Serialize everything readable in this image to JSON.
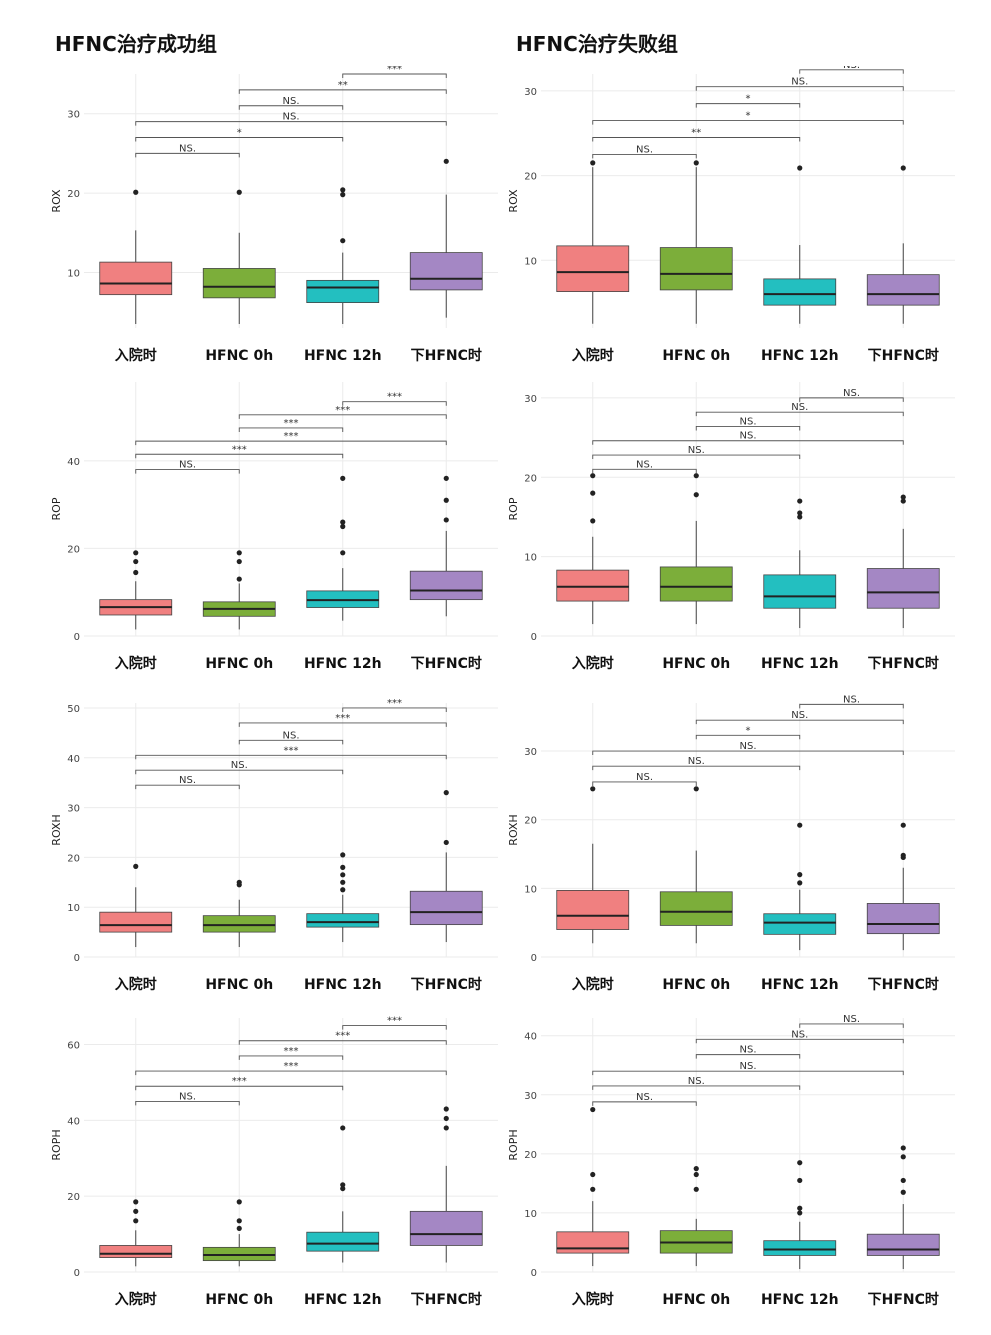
{
  "titles": {
    "left": "HFNC治疗成功组",
    "right": "HFNC治疗失败组"
  },
  "colors": {
    "g1": "#F08080",
    "g2": "#7CAE3A",
    "g3": "#23BFC0",
    "g4": "#A487C4",
    "grid": "#EBEBEB",
    "axis": "#444444",
    "bracket": "#555555"
  },
  "chart_data": [
    {
      "type": "box",
      "ylabel": "ROX",
      "ylim": [
        3,
        35
      ],
      "yticks": [
        10,
        20,
        30
      ],
      "categories": [
        "入院时",
        "HFNC 0h",
        "HFNC 12h",
        "下HFNC时"
      ],
      "boxes": [
        {
          "min": 3.5,
          "q1": 7.2,
          "median": 8.6,
          "q3": 11.3,
          "max": 15.3,
          "outliers": [
            20.1
          ]
        },
        {
          "min": 3.5,
          "q1": 6.8,
          "median": 8.2,
          "q3": 10.5,
          "max": 15.0,
          "outliers": [
            20.1
          ]
        },
        {
          "min": 3.5,
          "q1": 6.2,
          "median": 8.1,
          "q3": 9.0,
          "max": 12.5,
          "outliers": [
            14.0,
            19.8,
            20.4
          ]
        },
        {
          "min": 4.3,
          "q1": 7.8,
          "median": 9.2,
          "q3": 12.5,
          "max": 19.8,
          "outliers": [
            24.0
          ]
        }
      ],
      "comparisons": [
        {
          "a": 0,
          "b": 1,
          "y": 25.0,
          "label": "NS."
        },
        {
          "a": 0,
          "b": 2,
          "y": 27.0,
          "label": "*"
        },
        {
          "a": 0,
          "b": 3,
          "y": 29.0,
          "label": "NS."
        },
        {
          "a": 1,
          "b": 2,
          "y": 31.0,
          "label": "NS."
        },
        {
          "a": 1,
          "b": 3,
          "y": 33.0,
          "label": "**"
        },
        {
          "a": 2,
          "b": 3,
          "y": 35.0,
          "label": "***"
        }
      ]
    },
    {
      "type": "box",
      "ylabel": "ROX",
      "ylim": [
        2,
        32
      ],
      "yticks": [
        10,
        20,
        30
      ],
      "categories": [
        "入院时",
        "HFNC 0h",
        "HFNC 12h",
        "下HFNC时"
      ],
      "boxes": [
        {
          "min": 2.5,
          "q1": 6.3,
          "median": 8.6,
          "q3": 11.7,
          "max": 21.0,
          "outliers": [
            21.5
          ]
        },
        {
          "min": 2.5,
          "q1": 6.5,
          "median": 8.4,
          "q3": 11.5,
          "max": 21.0,
          "outliers": [
            21.5
          ]
        },
        {
          "min": 2.5,
          "q1": 4.7,
          "median": 6.0,
          "q3": 7.8,
          "max": 11.8,
          "outliers": [
            20.9
          ]
        },
        {
          "min": 2.5,
          "q1": 4.7,
          "median": 6.0,
          "q3": 8.3,
          "max": 12.0,
          "outliers": [
            20.9
          ]
        }
      ],
      "comparisons": [
        {
          "a": 0,
          "b": 1,
          "y": 22.5,
          "label": "NS."
        },
        {
          "a": 0,
          "b": 2,
          "y": 24.5,
          "label": "**"
        },
        {
          "a": 0,
          "b": 3,
          "y": 26.5,
          "label": "*"
        },
        {
          "a": 1,
          "b": 2,
          "y": 28.5,
          "label": "*"
        },
        {
          "a": 1,
          "b": 3,
          "y": 30.5,
          "label": "NS."
        },
        {
          "a": 2,
          "b": 3,
          "y": 32.5,
          "label": "NS."
        }
      ]
    },
    {
      "type": "box",
      "ylabel": "ROP",
      "ylim": [
        0,
        58
      ],
      "yticks": [
        0,
        20,
        40
      ],
      "categories": [
        "入院时",
        "HFNC 0h",
        "HFNC 12h",
        "下HFNC时"
      ],
      "boxes": [
        {
          "min": 1.5,
          "q1": 4.8,
          "median": 6.6,
          "q3": 8.3,
          "max": 12.5,
          "outliers": [
            14.5,
            17.0,
            19.0
          ]
        },
        {
          "min": 1.5,
          "q1": 4.5,
          "median": 6.2,
          "q3": 7.8,
          "max": 12.0,
          "outliers": [
            13.0,
            17.0,
            19.0
          ]
        },
        {
          "min": 3.5,
          "q1": 6.5,
          "median": 8.2,
          "q3": 10.3,
          "max": 15.5,
          "outliers": [
            19.0,
            25.0,
            26.0,
            36.0
          ]
        },
        {
          "min": 4.5,
          "q1": 8.3,
          "median": 10.4,
          "q3": 14.8,
          "max": 24.0,
          "outliers": [
            26.5,
            31.0,
            36.0
          ]
        }
      ],
      "comparisons": [
        {
          "a": 0,
          "b": 1,
          "y": 38.0,
          "label": "NS."
        },
        {
          "a": 0,
          "b": 2,
          "y": 41.5,
          "label": "***"
        },
        {
          "a": 0,
          "b": 3,
          "y": 44.5,
          "label": "***"
        },
        {
          "a": 1,
          "b": 2,
          "y": 47.5,
          "label": "***"
        },
        {
          "a": 1,
          "b": 3,
          "y": 50.5,
          "label": "***"
        },
        {
          "a": 2,
          "b": 3,
          "y": 53.5,
          "label": "***"
        }
      ]
    },
    {
      "type": "box",
      "ylabel": "ROP",
      "ylim": [
        0,
        32
      ],
      "yticks": [
        0,
        10,
        20,
        30
      ],
      "categories": [
        "入院时",
        "HFNC 0h",
        "HFNC 12h",
        "下HFNC时"
      ],
      "boxes": [
        {
          "min": 1.5,
          "q1": 4.4,
          "median": 6.2,
          "q3": 8.3,
          "max": 12.5,
          "outliers": [
            14.5,
            18.0,
            20.2
          ]
        },
        {
          "min": 1.5,
          "q1": 4.4,
          "median": 6.2,
          "q3": 8.7,
          "max": 14.5,
          "outliers": [
            17.8,
            20.2
          ]
        },
        {
          "min": 1.0,
          "q1": 3.5,
          "median": 5.0,
          "q3": 7.7,
          "max": 10.8,
          "outliers": [
            15.0,
            15.5,
            17.0
          ]
        },
        {
          "min": 1.0,
          "q1": 3.5,
          "median": 5.5,
          "q3": 8.5,
          "max": 13.5,
          "outliers": [
            17.0,
            17.5
          ]
        }
      ],
      "comparisons": [
        {
          "a": 0,
          "b": 1,
          "y": 21.0,
          "label": "NS."
        },
        {
          "a": 0,
          "b": 2,
          "y": 22.8,
          "label": "NS."
        },
        {
          "a": 0,
          "b": 3,
          "y": 24.6,
          "label": "NS."
        },
        {
          "a": 1,
          "b": 2,
          "y": 26.4,
          "label": "NS."
        },
        {
          "a": 1,
          "b": 3,
          "y": 28.2,
          "label": "NS."
        },
        {
          "a": 2,
          "b": 3,
          "y": 30.0,
          "label": "NS."
        }
      ]
    },
    {
      "type": "box",
      "ylabel": "ROXH",
      "ylim": [
        0,
        51
      ],
      "yticks": [
        0,
        10,
        20,
        30,
        40,
        50
      ],
      "categories": [
        "入院时",
        "HFNC 0h",
        "HFNC 12h",
        "下HFNC时"
      ],
      "boxes": [
        {
          "min": 2.0,
          "q1": 5.0,
          "median": 6.4,
          "q3": 9.0,
          "max": 14.0,
          "outliers": [
            18.2
          ]
        },
        {
          "min": 2.0,
          "q1": 5.0,
          "median": 6.4,
          "q3": 8.3,
          "max": 11.5,
          "outliers": [
            14.5,
            15.0
          ]
        },
        {
          "min": 3.0,
          "q1": 6.0,
          "median": 7.0,
          "q3": 8.7,
          "max": 12.5,
          "outliers": [
            13.5,
            15.0,
            16.5,
            18.0,
            20.5
          ]
        },
        {
          "min": 3.0,
          "q1": 6.5,
          "median": 9.0,
          "q3": 13.2,
          "max": 21.0,
          "outliers": [
            23.0,
            33.0
          ]
        }
      ],
      "comparisons": [
        {
          "a": 0,
          "b": 1,
          "y": 34.5,
          "label": "NS."
        },
        {
          "a": 0,
          "b": 2,
          "y": 37.5,
          "label": "NS."
        },
        {
          "a": 0,
          "b": 3,
          "y": 40.5,
          "label": "***"
        },
        {
          "a": 1,
          "b": 2,
          "y": 43.5,
          "label": "NS."
        },
        {
          "a": 1,
          "b": 3,
          "y": 47.0,
          "label": "***"
        },
        {
          "a": 2,
          "b": 3,
          "y": 50.0,
          "label": "***"
        }
      ]
    },
    {
      "type": "box",
      "ylabel": "ROXH",
      "ylim": [
        0,
        37
      ],
      "yticks": [
        0,
        10,
        20,
        30
      ],
      "categories": [
        "入院时",
        "HFNC 0h",
        "HFNC 12h",
        "下HFNC时"
      ],
      "boxes": [
        {
          "min": 2.0,
          "q1": 4.0,
          "median": 6.0,
          "q3": 9.7,
          "max": 16.5,
          "outliers": [
            24.5
          ]
        },
        {
          "min": 2.0,
          "q1": 4.6,
          "median": 6.6,
          "q3": 9.5,
          "max": 15.5,
          "outliers": [
            24.5
          ]
        },
        {
          "min": 1.0,
          "q1": 3.3,
          "median": 5.0,
          "q3": 6.3,
          "max": 9.8,
          "outliers": [
            10.8,
            12.0,
            19.2
          ]
        },
        {
          "min": 1.0,
          "q1": 3.4,
          "median": 4.8,
          "q3": 7.8,
          "max": 13.0,
          "outliers": [
            14.5,
            14.8,
            19.2
          ]
        }
      ],
      "comparisons": [
        {
          "a": 0,
          "b": 1,
          "y": 25.5,
          "label": "NS."
        },
        {
          "a": 0,
          "b": 2,
          "y": 27.8,
          "label": "NS."
        },
        {
          "a": 0,
          "b": 3,
          "y": 30.0,
          "label": "NS."
        },
        {
          "a": 1,
          "b": 2,
          "y": 32.3,
          "label": "*"
        },
        {
          "a": 1,
          "b": 3,
          "y": 34.5,
          "label": "NS."
        },
        {
          "a": 2,
          "b": 3,
          "y": 36.8,
          "label": "NS."
        }
      ]
    },
    {
      "type": "box",
      "ylabel": "ROPH",
      "ylim": [
        0,
        67
      ],
      "yticks": [
        0,
        20,
        40,
        60
      ],
      "categories": [
        "入院时",
        "HFNC 0h",
        "HFNC 12h",
        "下HFNC时"
      ],
      "boxes": [
        {
          "min": 1.5,
          "q1": 3.8,
          "median": 4.8,
          "q3": 7.0,
          "max": 11.0,
          "outliers": [
            13.5,
            16.0,
            18.5
          ]
        },
        {
          "min": 1.5,
          "q1": 3.0,
          "median": 4.5,
          "q3": 6.5,
          "max": 10.0,
          "outliers": [
            11.5,
            13.5,
            18.5
          ]
        },
        {
          "min": 2.5,
          "q1": 5.5,
          "median": 7.5,
          "q3": 10.5,
          "max": 16.0,
          "outliers": [
            22.0,
            23.0,
            38.0
          ]
        },
        {
          "min": 2.5,
          "q1": 7.0,
          "median": 10.0,
          "q3": 16.0,
          "max": 28.0,
          "outliers": [
            38.0,
            40.5,
            43.0
          ]
        }
      ],
      "comparisons": [
        {
          "a": 0,
          "b": 1,
          "y": 45.0,
          "label": "NS."
        },
        {
          "a": 0,
          "b": 2,
          "y": 49.0,
          "label": "***"
        },
        {
          "a": 0,
          "b": 3,
          "y": 53.0,
          "label": "***"
        },
        {
          "a": 1,
          "b": 2,
          "y": 57.0,
          "label": "***"
        },
        {
          "a": 1,
          "b": 3,
          "y": 61.0,
          "label": "***"
        },
        {
          "a": 2,
          "b": 3,
          "y": 65.0,
          "label": "***"
        }
      ]
    },
    {
      "type": "box",
      "ylabel": "ROPH",
      "ylim": [
        0,
        43
      ],
      "yticks": [
        0,
        10,
        20,
        30,
        40
      ],
      "categories": [
        "入院时",
        "HFNC 0h",
        "HFNC 12h",
        "下HFNC时"
      ],
      "boxes": [
        {
          "min": 1.0,
          "q1": 3.2,
          "median": 4.0,
          "q3": 6.8,
          "max": 12.0,
          "outliers": [
            14.0,
            16.5,
            27.5
          ]
        },
        {
          "min": 1.0,
          "q1": 3.2,
          "median": 5.0,
          "q3": 7.0,
          "max": 9.0,
          "outliers": [
            14.0,
            16.5,
            17.5
          ]
        },
        {
          "min": 0.5,
          "q1": 2.8,
          "median": 3.8,
          "q3": 5.3,
          "max": 8.5,
          "outliers": [
            10.0,
            10.8,
            15.5,
            18.5
          ]
        },
        {
          "min": 0.5,
          "q1": 2.8,
          "median": 3.8,
          "q3": 6.4,
          "max": 11.5,
          "outliers": [
            13.5,
            15.5,
            19.5,
            21.0
          ]
        }
      ],
      "comparisons": [
        {
          "a": 0,
          "b": 1,
          "y": 28.8,
          "label": "NS."
        },
        {
          "a": 0,
          "b": 2,
          "y": 31.5,
          "label": "NS."
        },
        {
          "a": 0,
          "b": 3,
          "y": 34.0,
          "label": "NS."
        },
        {
          "a": 1,
          "b": 2,
          "y": 36.8,
          "label": "NS."
        },
        {
          "a": 1,
          "b": 3,
          "y": 39.4,
          "label": "NS."
        },
        {
          "a": 2,
          "b": 3,
          "y": 42.0,
          "label": "NS."
        }
      ]
    }
  ]
}
